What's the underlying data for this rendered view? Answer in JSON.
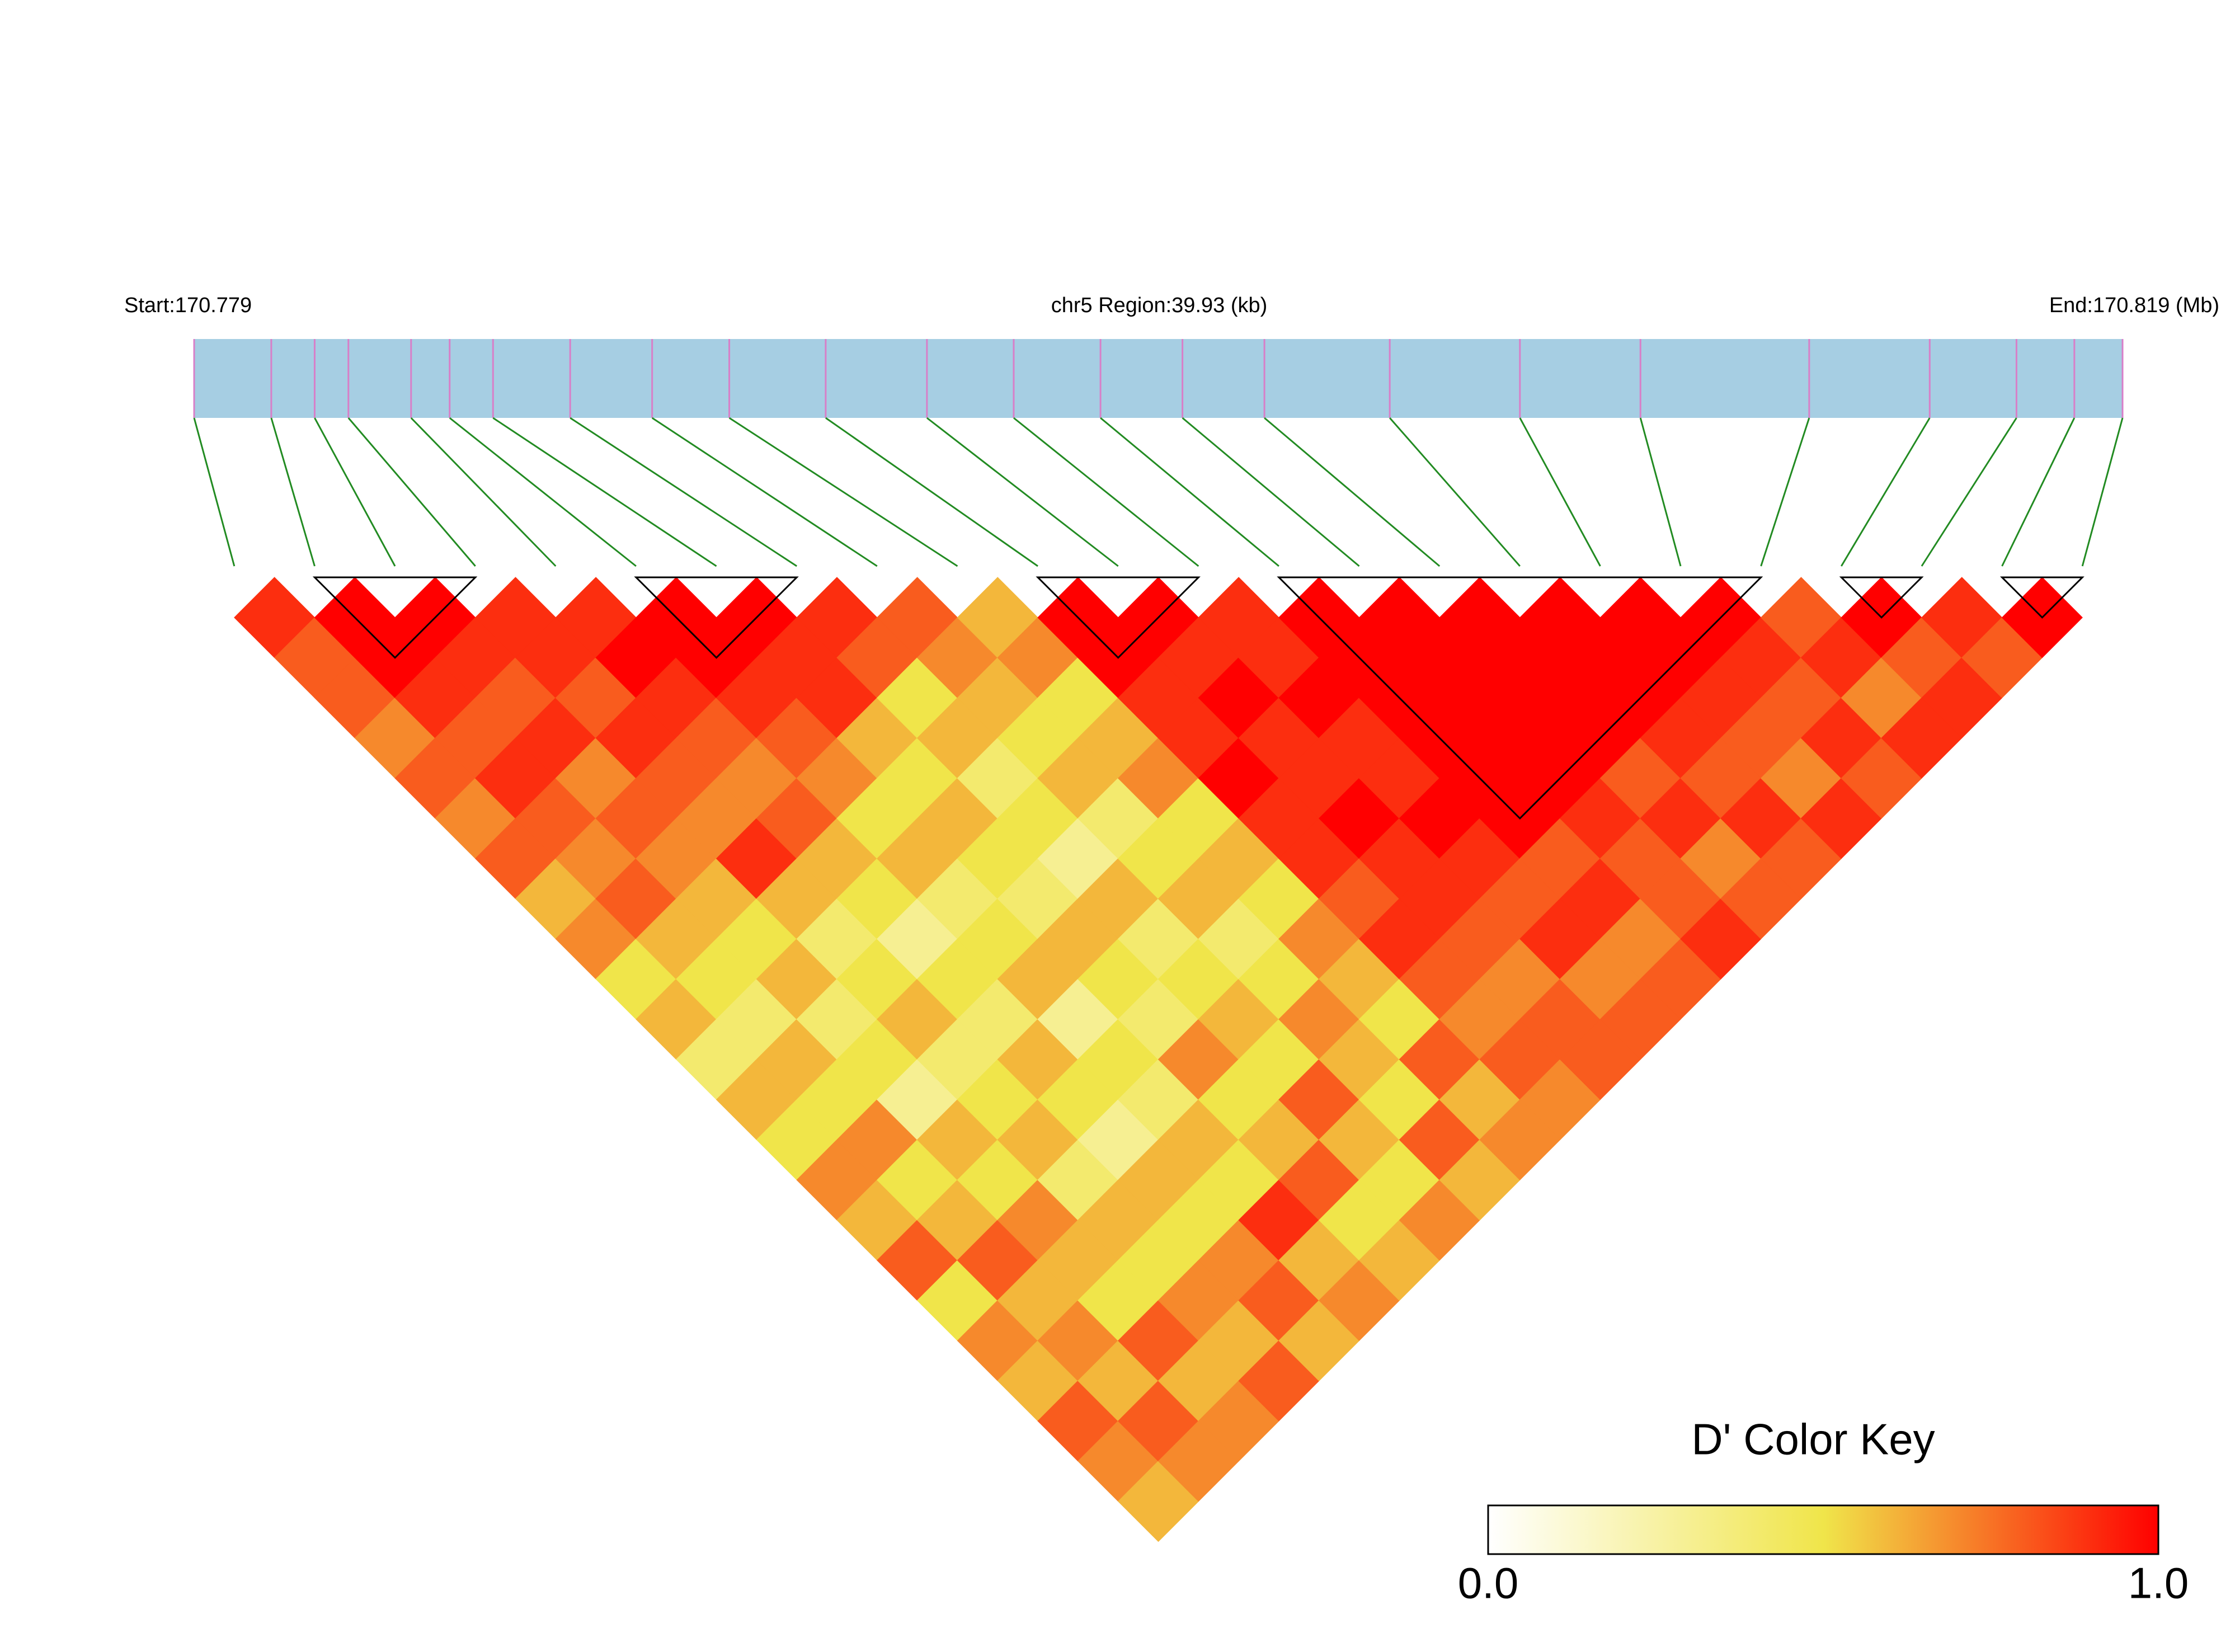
{
  "chart_data": {
    "type": "ld-heatmap",
    "start_label": "Start:170.779",
    "region_label": "chr5 Region:39.93 (kb)",
    "end_label": "End:170.819 (Mb)",
    "xlim": [
      170.779,
      170.819
    ],
    "positions": [
      170.779,
      170.7806,
      170.7815,
      170.7822,
      170.7835,
      170.7843,
      170.7852,
      170.7868,
      170.7885,
      170.7901,
      170.7921,
      170.7942,
      170.796,
      170.7978,
      170.7995,
      170.8012,
      170.8038,
      170.8065,
      170.809,
      170.8125,
      170.815,
      170.8168,
      170.818,
      170.819
    ],
    "values": [
      [
        0.9,
        0.8,
        0.8,
        0.7,
        0.8,
        0.7,
        0.8,
        0.6,
        0.7,
        0.5,
        0.6,
        0.4,
        0.6,
        0.5,
        0.7,
        0.6,
        0.8,
        0.5,
        0.7,
        0.6,
        0.8,
        0.7,
        0.6
      ],
      [
        1,
        1,
        0.9,
        0.8,
        0.9,
        0.8,
        0.7,
        0.8,
        0.6,
        0.5,
        0.4,
        0.6,
        0.5,
        0.7,
        0.5,
        0.6,
        0.8,
        0.6,
        0.7,
        0.6,
        0.8,
        0.7
      ],
      [
        1,
        0.9,
        0.8,
        0.9,
        0.7,
        0.8,
        0.7,
        0.6,
        0.5,
        0.6,
        0.4,
        0.5,
        0.3,
        0.6,
        0.5,
        0.7,
        0.6,
        0.5,
        0.8,
        0.6,
        0.7
      ],
      [
        0.9,
        0.9,
        0.8,
        0.9,
        0.8,
        0.7,
        0.9,
        0.6,
        0.4,
        0.5,
        0.6,
        0.4,
        0.5,
        0.6,
        0.4,
        0.6,
        0.5,
        0.7,
        0.6,
        0.8
      ],
      [
        0.9,
        1,
        0.9,
        0.8,
        0.7,
        0.8,
        0.6,
        0.5,
        0.3,
        0.5,
        0.4,
        0.6,
        0.5,
        0.3,
        0.6,
        0.5,
        0.7,
        0.8,
        0.6
      ],
      [
        1,
        1,
        0.9,
        0.8,
        0.7,
        0.5,
        0.6,
        0.4,
        0.5,
        0.6,
        0.3,
        0.5,
        0.4,
        0.6,
        0.5,
        0.9,
        0.6,
        0.7
      ],
      [
        1,
        0.9,
        0.9,
        0.6,
        0.5,
        0.6,
        0.5,
        0.4,
        0.6,
        0.5,
        0.4,
        0.7,
        0.5,
        0.6,
        0.8,
        0.5,
        0.6
      ],
      [
        0.9,
        0.8,
        0.5,
        0.6,
        0.4,
        0.5,
        0.3,
        0.6,
        0.4,
        0.5,
        0.6,
        0.5,
        0.8,
        0.6,
        0.5,
        0.7
      ],
      [
        0.8,
        0.7,
        0.6,
        0.5,
        0.6,
        0.4,
        0.5,
        0.6,
        0.4,
        0.5,
        0.7,
        0.6,
        0.5,
        0.8,
        0.6
      ],
      [
        0.6,
        0.7,
        0.5,
        0.6,
        0.7,
        0.5,
        0.6,
        0.5,
        0.7,
        0.6,
        0.5,
        0.8,
        0.6,
        0.7
      ],
      [
        1,
        1,
        0.9,
        0.9,
        1,
        0.9,
        0.9,
        0.8,
        0.9,
        0.8,
        0.7,
        0.8,
        0.7
      ],
      [
        1,
        0.9,
        1,
        0.9,
        0.9,
        1,
        0.9,
        0.9,
        0.8,
        0.7,
        0.8,
        0.8
      ],
      [
        0.9,
        0.9,
        1,
        0.9,
        0.9,
        1,
        0.9,
        0.8,
        0.9,
        0.7,
        0.8
      ],
      [
        1,
        1,
        1,
        1,
        1,
        1,
        0.8,
        0.9,
        0.7,
        0.8
      ],
      [
        1,
        1,
        1,
        1,
        1,
        0.9,
        0.8,
        0.8,
        0.9
      ],
      [
        1,
        1,
        1,
        1,
        0.8,
        0.9,
        0.7,
        0.8
      ],
      [
        1,
        1,
        1,
        0.9,
        0.8,
        0.9,
        0.8
      ],
      [
        1,
        1,
        0.9,
        0.8,
        0.7,
        0.9
      ],
      [
        1,
        0.9,
        0.8,
        0.9,
        0.8
      ],
      [
        0.8,
        0.9,
        0.7,
        0.9
      ],
      [
        1,
        0.8,
        0.9
      ],
      [
        0.9,
        0.8
      ],
      [
        1
      ]
    ],
    "blocks": [
      [
        1,
        3
      ],
      [
        5,
        7
      ],
      [
        10,
        12
      ],
      [
        13,
        19
      ],
      [
        20,
        21
      ],
      [
        22,
        23
      ]
    ],
    "colormap": [
      "#ffffff",
      "#f0e54a",
      "#ff0000"
    ],
    "bar_color": "#a6cee3",
    "snp_color": "#d87fc8",
    "connector_color": "#228b22",
    "key_title": "D' Color Key",
    "key_lim": [
      0,
      1
    ],
    "key_ticks": [
      {
        "value": 0,
        "label": "0.0"
      },
      {
        "value": 1,
        "label": "1.0"
      }
    ]
  }
}
